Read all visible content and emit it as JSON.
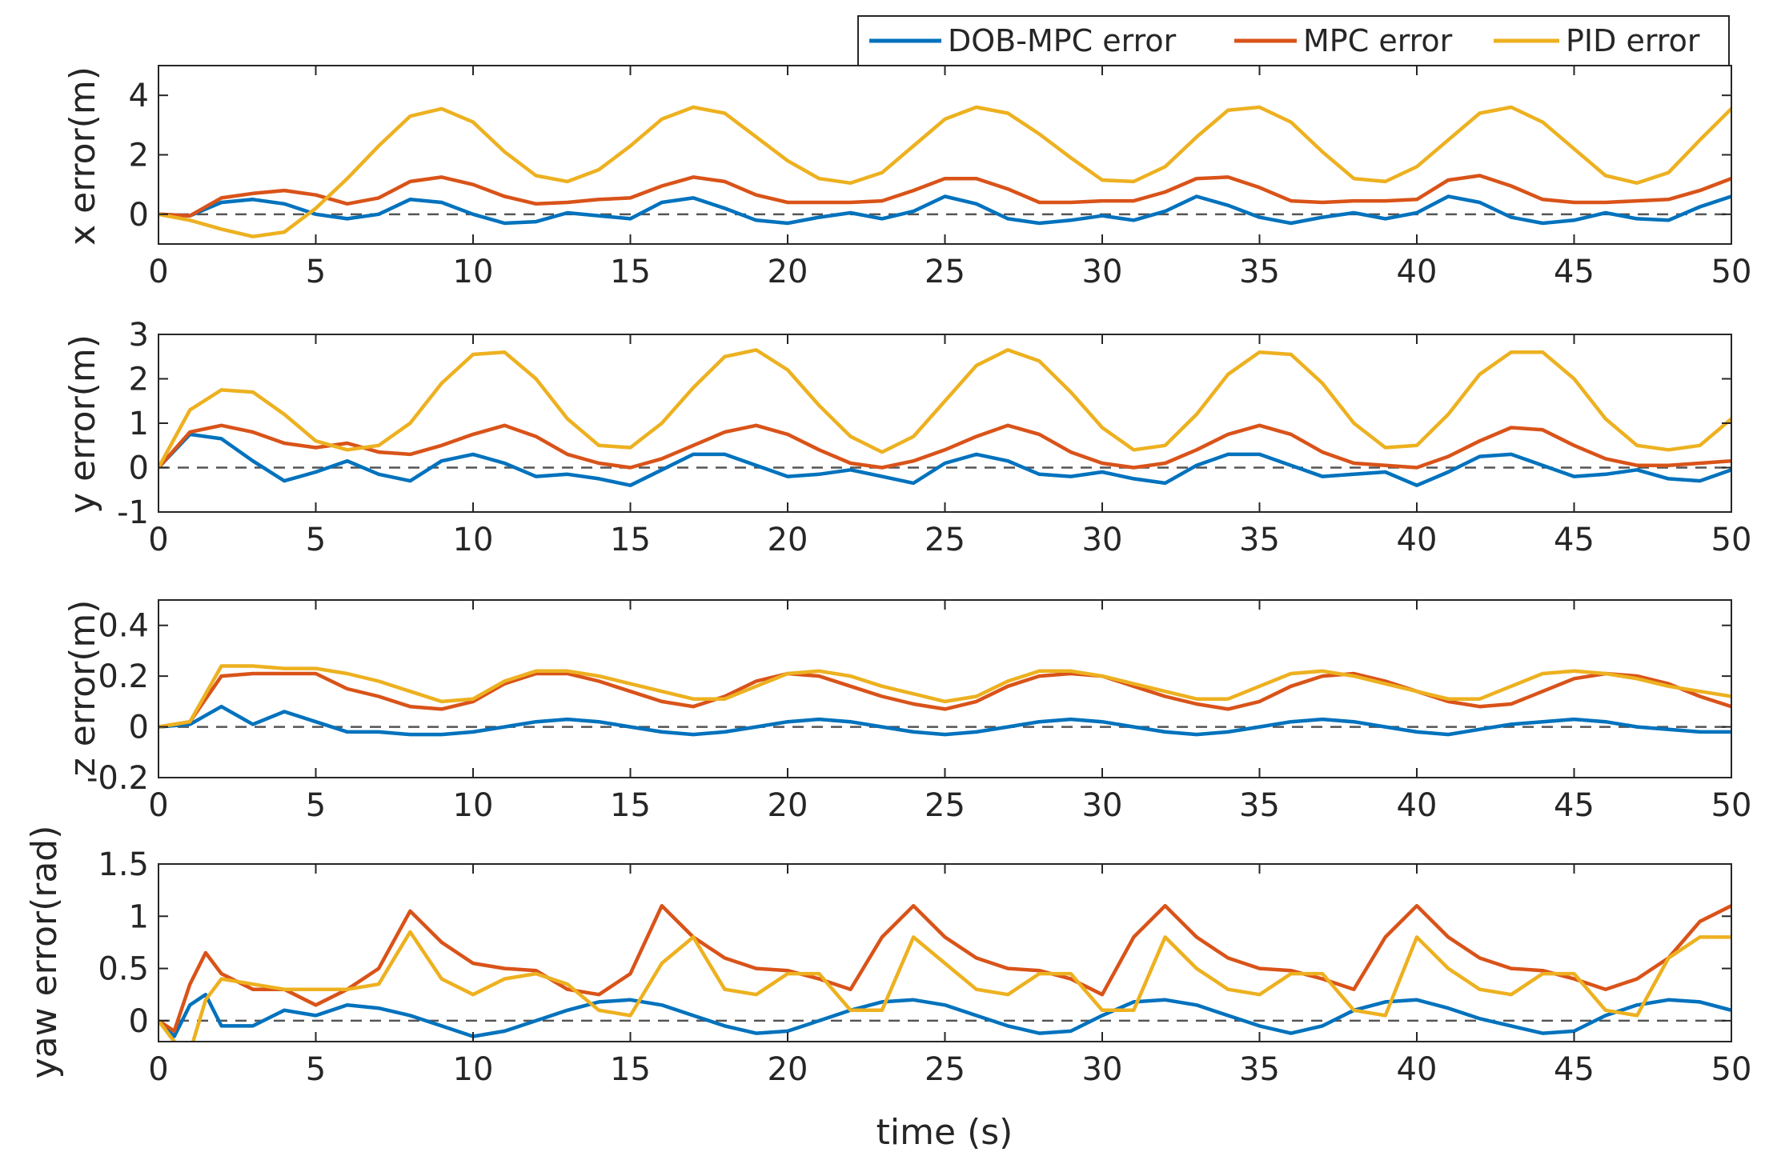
{
  "chart_data": [
    {
      "type": "line",
      "title": "",
      "xlabel": "",
      "ylabel": "x error(m)",
      "xlim": [
        0,
        50
      ],
      "ylim": [
        -1,
        5
      ],
      "xticks": [
        "0",
        "5",
        "10",
        "15",
        "20",
        "25",
        "30",
        "35",
        "40",
        "45",
        "50"
      ],
      "yticks": [
        "0",
        "2",
        "4"
      ],
      "ytick_values": [
        0,
        2,
        4
      ],
      "reference_line": 0,
      "x": [
        0,
        1,
        2,
        3,
        4,
        5,
        6,
        7,
        8,
        9,
        10,
        11,
        12,
        13,
        14,
        15,
        16,
        17,
        18,
        19,
        20,
        21,
        22,
        23,
        24,
        25,
        26,
        27,
        28,
        29,
        30,
        31,
        32,
        33,
        34,
        35,
        36,
        37,
        38,
        39,
        40,
        41,
        42,
        43,
        44,
        45,
        46,
        47,
        48,
        49,
        50
      ],
      "series": [
        {
          "name": "DOB-MPC error",
          "values": [
            0,
            -0.05,
            0.4,
            0.5,
            0.35,
            0,
            -0.15,
            0,
            0.5,
            0.4,
            0,
            -0.3,
            -0.25,
            0.05,
            -0.05,
            -0.15,
            0.4,
            0.55,
            0.2,
            -0.2,
            -0.3,
            -0.1,
            0.05,
            -0.15,
            0.1,
            0.6,
            0.35,
            -0.15,
            -0.3,
            -0.2,
            -0.05,
            -0.2,
            0.1,
            0.6,
            0.3,
            -0.1,
            -0.3,
            -0.1,
            0.05,
            -0.15,
            0.05,
            0.6,
            0.4,
            -0.1,
            -0.3,
            -0.2,
            0.05,
            -0.15,
            -0.2,
            0.25,
            0.6
          ]
        },
        {
          "name": "MPC error",
          "values": [
            0,
            -0.05,
            0.55,
            0.7,
            0.8,
            0.65,
            0.35,
            0.55,
            1.1,
            1.25,
            1.0,
            0.6,
            0.35,
            0.4,
            0.5,
            0.55,
            0.95,
            1.25,
            1.1,
            0.65,
            0.4,
            0.4,
            0.4,
            0.45,
            0.8,
            1.2,
            1.2,
            0.85,
            0.4,
            0.4,
            0.45,
            0.45,
            0.75,
            1.2,
            1.25,
            0.9,
            0.45,
            0.4,
            0.45,
            0.45,
            0.5,
            1.15,
            1.3,
            0.95,
            0.5,
            0.4,
            0.4,
            0.45,
            0.5,
            0.8,
            1.2
          ]
        },
        {
          "name": "PID error",
          "values": [
            0,
            -0.2,
            -0.5,
            -0.75,
            -0.6,
            0.2,
            1.2,
            2.3,
            3.3,
            3.55,
            3.1,
            2.1,
            1.3,
            1.1,
            1.5,
            2.3,
            3.2,
            3.6,
            3.4,
            2.6,
            1.8,
            1.2,
            1.05,
            1.4,
            2.3,
            3.2,
            3.6,
            3.4,
            2.7,
            1.9,
            1.15,
            1.1,
            1.6,
            2.6,
            3.5,
            3.6,
            3.1,
            2.1,
            1.2,
            1.1,
            1.6,
            2.5,
            3.4,
            3.6,
            3.1,
            2.2,
            1.3,
            1.05,
            1.4,
            2.5,
            3.55
          ]
        }
      ]
    },
    {
      "type": "line",
      "title": "",
      "xlabel": "",
      "ylabel": "y error(m)",
      "xlim": [
        0,
        50
      ],
      "ylim": [
        -1,
        3
      ],
      "xticks": [
        "0",
        "5",
        "10",
        "15",
        "20",
        "25",
        "30",
        "35",
        "40",
        "45",
        "50"
      ],
      "yticks": [
        "-1",
        "0",
        "1",
        "2",
        "3"
      ],
      "ytick_values": [
        -1,
        0,
        1,
        2,
        3
      ],
      "reference_line": 0,
      "x": [
        0,
        1,
        2,
        3,
        4,
        5,
        6,
        7,
        8,
        9,
        10,
        11,
        12,
        13,
        14,
        15,
        16,
        17,
        18,
        19,
        20,
        21,
        22,
        23,
        24,
        25,
        26,
        27,
        28,
        29,
        30,
        31,
        32,
        33,
        34,
        35,
        36,
        37,
        38,
        39,
        40,
        41,
        42,
        43,
        44,
        45,
        46,
        47,
        48,
        49,
        50
      ],
      "series": [
        {
          "name": "DOB-MPC error",
          "values": [
            0,
            0.75,
            0.65,
            0.15,
            -0.3,
            -0.1,
            0.15,
            -0.15,
            -0.3,
            0.15,
            0.3,
            0.1,
            -0.2,
            -0.15,
            -0.25,
            -0.4,
            -0.05,
            0.3,
            0.3,
            0.05,
            -0.2,
            -0.15,
            -0.05,
            -0.2,
            -0.35,
            0.1,
            0.3,
            0.15,
            -0.15,
            -0.2,
            -0.1,
            -0.25,
            -0.35,
            0.05,
            0.3,
            0.3,
            0.05,
            -0.2,
            -0.15,
            -0.1,
            -0.4,
            -0.1,
            0.25,
            0.3,
            0.05,
            -0.2,
            -0.15,
            -0.05,
            -0.25,
            -0.3,
            -0.05
          ]
        },
        {
          "name": "MPC error",
          "values": [
            0,
            0.8,
            0.95,
            0.8,
            0.55,
            0.45,
            0.55,
            0.35,
            0.3,
            0.5,
            0.75,
            0.95,
            0.7,
            0.3,
            0.1,
            0.0,
            0.2,
            0.5,
            0.8,
            0.95,
            0.75,
            0.4,
            0.1,
            0.0,
            0.15,
            0.4,
            0.7,
            0.95,
            0.75,
            0.35,
            0.1,
            0.0,
            0.1,
            0.4,
            0.75,
            0.95,
            0.75,
            0.35,
            0.1,
            0.05,
            0.0,
            0.25,
            0.6,
            0.9,
            0.85,
            0.5,
            0.2,
            0.05,
            0.05,
            0.1,
            0.15
          ]
        },
        {
          "name": "PID error",
          "values": [
            0,
            1.3,
            1.75,
            1.7,
            1.2,
            0.6,
            0.4,
            0.5,
            1.0,
            1.9,
            2.55,
            2.6,
            2.0,
            1.1,
            0.5,
            0.45,
            1.0,
            1.8,
            2.5,
            2.65,
            2.2,
            1.4,
            0.7,
            0.35,
            0.7,
            1.5,
            2.3,
            2.65,
            2.4,
            1.7,
            0.9,
            0.4,
            0.5,
            1.2,
            2.1,
            2.6,
            2.55,
            1.9,
            1.0,
            0.45,
            0.5,
            1.2,
            2.1,
            2.6,
            2.6,
            2.0,
            1.1,
            0.5,
            0.4,
            0.5,
            1.1
          ]
        }
      ]
    },
    {
      "type": "line",
      "title": "",
      "xlabel": "",
      "ylabel": "z error(m)",
      "xlim": [
        0,
        50
      ],
      "ylim": [
        -0.2,
        0.5
      ],
      "xticks": [
        "0",
        "5",
        "10",
        "15",
        "20",
        "25",
        "30",
        "35",
        "40",
        "45",
        "50"
      ],
      "yticks": [
        "-0.2",
        "0",
        "0.2",
        "0.4"
      ],
      "ytick_values": [
        -0.2,
        0,
        0.2,
        0.4
      ],
      "reference_line": 0,
      "x": [
        0,
        1,
        2,
        3,
        4,
        5,
        6,
        7,
        8,
        9,
        10,
        11,
        12,
        13,
        14,
        15,
        16,
        17,
        18,
        19,
        20,
        21,
        22,
        23,
        24,
        25,
        26,
        27,
        28,
        29,
        30,
        31,
        32,
        33,
        34,
        35,
        36,
        37,
        38,
        39,
        40,
        41,
        42,
        43,
        44,
        45,
        46,
        47,
        48,
        49,
        50
      ],
      "series": [
        {
          "name": "DOB-MPC error",
          "values": [
            0,
            0.01,
            0.08,
            0.01,
            0.06,
            0.02,
            -0.02,
            -0.02,
            -0.03,
            -0.03,
            -0.02,
            0.0,
            0.02,
            0.03,
            0.02,
            0.0,
            -0.02,
            -0.03,
            -0.02,
            0.0,
            0.02,
            0.03,
            0.02,
            0.0,
            -0.02,
            -0.03,
            -0.02,
            0.0,
            0.02,
            0.03,
            0.02,
            0.0,
            -0.02,
            -0.03,
            -0.02,
            0.0,
            0.02,
            0.03,
            0.02,
            0.0,
            -0.02,
            -0.03,
            -0.01,
            0.01,
            0.02,
            0.03,
            0.02,
            0.0,
            -0.01,
            -0.02,
            -0.02
          ]
        },
        {
          "name": "MPC error",
          "values": [
            0,
            0.02,
            0.2,
            0.21,
            0.21,
            0.21,
            0.15,
            0.12,
            0.08,
            0.07,
            0.1,
            0.17,
            0.21,
            0.21,
            0.18,
            0.14,
            0.1,
            0.08,
            0.12,
            0.18,
            0.21,
            0.2,
            0.16,
            0.12,
            0.09,
            0.07,
            0.1,
            0.16,
            0.2,
            0.21,
            0.2,
            0.16,
            0.12,
            0.09,
            0.07,
            0.1,
            0.16,
            0.2,
            0.21,
            0.18,
            0.14,
            0.1,
            0.08,
            0.09,
            0.14,
            0.19,
            0.21,
            0.2,
            0.17,
            0.12,
            0.08
          ]
        },
        {
          "name": "PID error",
          "values": [
            0,
            0.02,
            0.24,
            0.24,
            0.23,
            0.23,
            0.21,
            0.18,
            0.14,
            0.1,
            0.11,
            0.18,
            0.22,
            0.22,
            0.2,
            0.17,
            0.14,
            0.11,
            0.11,
            0.16,
            0.21,
            0.22,
            0.2,
            0.16,
            0.13,
            0.1,
            0.12,
            0.18,
            0.22,
            0.22,
            0.2,
            0.17,
            0.14,
            0.11,
            0.11,
            0.16,
            0.21,
            0.22,
            0.2,
            0.17,
            0.14,
            0.11,
            0.11,
            0.16,
            0.21,
            0.22,
            0.21,
            0.19,
            0.16,
            0.14,
            0.12
          ]
        }
      ]
    },
    {
      "type": "line",
      "title": "",
      "xlabel": "time (s)",
      "ylabel": "yaw error(rad)",
      "xlim": [
        0,
        50
      ],
      "ylim": [
        -0.2,
        1.5
      ],
      "xticks": [
        "0",
        "5",
        "10",
        "15",
        "20",
        "25",
        "30",
        "35",
        "40",
        "45",
        "50"
      ],
      "yticks": [
        "0",
        "0.5",
        "1",
        "1.5"
      ],
      "ytick_values": [
        0,
        0.5,
        1,
        1.5
      ],
      "reference_line": 0,
      "x": [
        0,
        0.5,
        1,
        1.5,
        2,
        3,
        4,
        5,
        6,
        7,
        8,
        9,
        10,
        11,
        12,
        13,
        14,
        15,
        16,
        17,
        18,
        19,
        20,
        21,
        22,
        23,
        24,
        25,
        26,
        27,
        28,
        29,
        30,
        31,
        32,
        33,
        34,
        35,
        36,
        37,
        38,
        39,
        40,
        41,
        42,
        43,
        44,
        45,
        46,
        47,
        48,
        49,
        50
      ],
      "series": [
        {
          "name": "DOB-MPC error",
          "values": [
            0,
            -0.15,
            0.15,
            0.25,
            -0.05,
            -0.05,
            0.1,
            0.05,
            0.15,
            0.12,
            0.05,
            -0.05,
            -0.15,
            -0.1,
            0.0,
            0.1,
            0.18,
            0.2,
            0.15,
            0.05,
            -0.05,
            -0.12,
            -0.1,
            0.0,
            0.1,
            0.18,
            0.2,
            0.15,
            0.05,
            -0.05,
            -0.12,
            -0.1,
            0.05,
            0.18,
            0.2,
            0.15,
            0.05,
            -0.05,
            -0.12,
            -0.05,
            0.1,
            0.18,
            0.2,
            0.12,
            0.02,
            -0.05,
            -0.12,
            -0.1,
            0.05,
            0.15,
            0.2,
            0.18,
            0.1
          ]
        },
        {
          "name": "MPC error",
          "values": [
            0,
            -0.1,
            0.35,
            0.65,
            0.45,
            0.3,
            0.3,
            0.15,
            0.3,
            0.5,
            1.05,
            0.75,
            0.55,
            0.5,
            0.48,
            0.3,
            0.25,
            0.45,
            1.1,
            0.8,
            0.6,
            0.5,
            0.48,
            0.4,
            0.3,
            0.8,
            1.1,
            0.8,
            0.6,
            0.5,
            0.48,
            0.4,
            0.25,
            0.8,
            1.1,
            0.8,
            0.6,
            0.5,
            0.48,
            0.4,
            0.3,
            0.8,
            1.1,
            0.8,
            0.6,
            0.5,
            0.48,
            0.4,
            0.3,
            0.4,
            0.6,
            0.95,
            1.1
          ]
        },
        {
          "name": "PID error",
          "values": [
            0,
            -0.2,
            -0.3,
            0.2,
            0.4,
            0.35,
            0.3,
            0.3,
            0.3,
            0.35,
            0.85,
            0.4,
            0.25,
            0.4,
            0.45,
            0.35,
            0.1,
            0.05,
            0.55,
            0.8,
            0.3,
            0.25,
            0.45,
            0.45,
            0.1,
            0.1,
            0.8,
            0.55,
            0.3,
            0.25,
            0.45,
            0.45,
            0.1,
            0.1,
            0.8,
            0.5,
            0.3,
            0.25,
            0.45,
            0.45,
            0.1,
            0.05,
            0.8,
            0.5,
            0.3,
            0.25,
            0.45,
            0.45,
            0.1,
            0.05,
            0.6,
            0.8,
            0.8
          ]
        }
      ]
    }
  ],
  "legend": {
    "placement": "top-right",
    "entries": [
      {
        "label": "DOB-MPC error",
        "color": "#0072BD"
      },
      {
        "label": "MPC error",
        "color": "#D95319"
      },
      {
        "label": "PID error",
        "color": "#EDB120"
      }
    ]
  },
  "colors": {
    "series": [
      "#0072BD",
      "#D95319",
      "#EDB120"
    ],
    "axes": "#262626",
    "reference_line": "#555555"
  }
}
